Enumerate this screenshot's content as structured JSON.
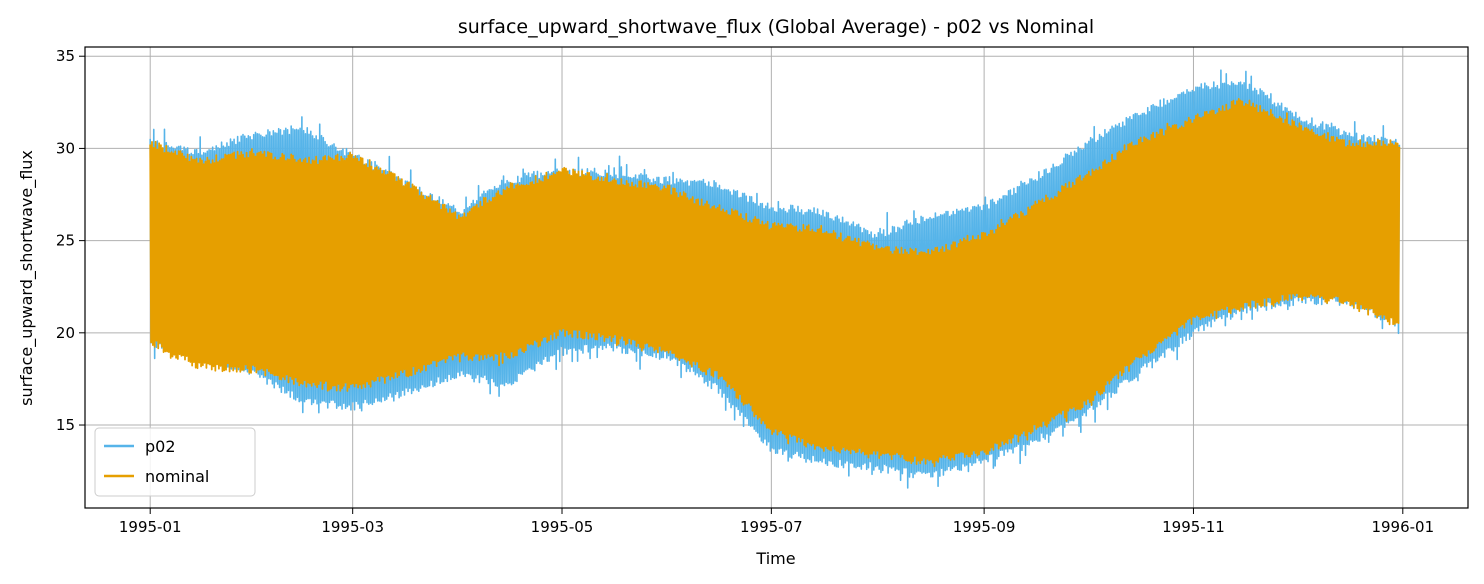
{
  "chart_data": {
    "type": "line",
    "title": "surface_upward_shortwave_flux (Global Average) - p02 vs Nominal",
    "xlabel": "Time",
    "ylabel": "surface_upward_shortwave_flux",
    "xlim": [
      "1994-12-13",
      "1996-01-20"
    ],
    "ylim": [
      10.5,
      35.5
    ],
    "x_ticks": [
      "1995-01",
      "1995-03",
      "1995-05",
      "1995-07",
      "1995-09",
      "1995-11",
      "1996-01"
    ],
    "x_tick_dates": [
      "1995-01-01",
      "1995-03-01",
      "1995-05-01",
      "1995-07-01",
      "1995-09-01",
      "1995-11-01",
      "1996-01-01"
    ],
    "y_ticks": [
      15,
      20,
      25,
      30,
      35
    ],
    "grid": true,
    "legend_position": "lower-left",
    "series": [
      {
        "name": "p02",
        "color": "#56B4E9",
        "points": [
          {
            "x": "1995-01-01",
            "upper": 30.5,
            "lower": 19.3
          },
          {
            "x": "1995-01-15",
            "upper": 30.0,
            "lower": 18.5
          },
          {
            "x": "1995-02-01",
            "upper": 31.0,
            "lower": 17.5
          },
          {
            "x": "1995-02-15",
            "upper": 31.3,
            "lower": 16.0
          },
          {
            "x": "1995-03-01",
            "upper": 29.8,
            "lower": 15.8
          },
          {
            "x": "1995-03-15",
            "upper": 28.5,
            "lower": 16.5
          },
          {
            "x": "1995-04-01",
            "upper": 26.8,
            "lower": 17.5
          },
          {
            "x": "1995-04-15",
            "upper": 28.5,
            "lower": 17.0
          },
          {
            "x": "1995-05-01",
            "upper": 29.0,
            "lower": 18.8
          },
          {
            "x": "1995-05-15",
            "upper": 28.8,
            "lower": 19.0
          },
          {
            "x": "1995-06-01",
            "upper": 28.5,
            "lower": 18.5
          },
          {
            "x": "1995-06-15",
            "upper": 28.3,
            "lower": 16.8
          },
          {
            "x": "1995-07-01",
            "upper": 27.0,
            "lower": 13.5
          },
          {
            "x": "1995-07-15",
            "upper": 26.8,
            "lower": 12.8
          },
          {
            "x": "1995-08-01",
            "upper": 25.5,
            "lower": 12.5
          },
          {
            "x": "1995-08-15",
            "upper": 26.5,
            "lower": 12.0
          },
          {
            "x": "1995-09-01",
            "upper": 27.0,
            "lower": 12.9
          },
          {
            "x": "1995-09-15",
            "upper": 28.5,
            "lower": 13.8
          },
          {
            "x": "1995-10-01",
            "upper": 30.5,
            "lower": 15.5
          },
          {
            "x": "1995-10-15",
            "upper": 32.0,
            "lower": 17.5
          },
          {
            "x": "1995-11-01",
            "upper": 33.5,
            "lower": 19.8
          },
          {
            "x": "1995-11-15",
            "upper": 33.8,
            "lower": 21.0
          },
          {
            "x": "1995-12-01",
            "upper": 32.0,
            "lower": 21.5
          },
          {
            "x": "1995-12-15",
            "upper": 31.0,
            "lower": 21.5
          },
          {
            "x": "1995-12-31",
            "upper": 30.5,
            "lower": 20.2
          }
        ]
      },
      {
        "name": "nominal",
        "color": "#E69F00",
        "points": [
          {
            "x": "1995-01-01",
            "upper": 30.5,
            "lower": 19.3
          },
          {
            "x": "1995-01-15",
            "upper": 29.5,
            "lower": 18.0
          },
          {
            "x": "1995-02-01",
            "upper": 30.0,
            "lower": 17.8
          },
          {
            "x": "1995-02-15",
            "upper": 29.5,
            "lower": 17.0
          },
          {
            "x": "1995-03-01",
            "upper": 29.8,
            "lower": 16.8
          },
          {
            "x": "1995-03-15",
            "upper": 28.5,
            "lower": 17.5
          },
          {
            "x": "1995-04-01",
            "upper": 26.5,
            "lower": 18.5
          },
          {
            "x": "1995-04-15",
            "upper": 28.0,
            "lower": 18.5
          },
          {
            "x": "1995-05-01",
            "upper": 29.0,
            "lower": 19.8
          },
          {
            "x": "1995-05-15",
            "upper": 28.5,
            "lower": 19.5
          },
          {
            "x": "1995-06-01",
            "upper": 28.0,
            "lower": 18.8
          },
          {
            "x": "1995-06-15",
            "upper": 27.0,
            "lower": 17.5
          },
          {
            "x": "1995-07-01",
            "upper": 26.0,
            "lower": 14.5
          },
          {
            "x": "1995-07-15",
            "upper": 25.8,
            "lower": 13.5
          },
          {
            "x": "1995-08-01",
            "upper": 24.8,
            "lower": 13.2
          },
          {
            "x": "1995-08-15",
            "upper": 24.5,
            "lower": 12.8
          },
          {
            "x": "1995-09-01",
            "upper": 25.5,
            "lower": 13.3
          },
          {
            "x": "1995-09-15",
            "upper": 27.0,
            "lower": 14.5
          },
          {
            "x": "1995-10-01",
            "upper": 28.8,
            "lower": 16.0
          },
          {
            "x": "1995-10-15",
            "upper": 30.5,
            "lower": 18.2
          },
          {
            "x": "1995-11-01",
            "upper": 31.8,
            "lower": 20.5
          },
          {
            "x": "1995-11-15",
            "upper": 32.8,
            "lower": 21.2
          },
          {
            "x": "1995-12-01",
            "upper": 31.5,
            "lower": 21.8
          },
          {
            "x": "1995-12-15",
            "upper": 30.5,
            "lower": 21.5
          },
          {
            "x": "1995-12-31",
            "upper": 30.5,
            "lower": 20.2
          }
        ]
      }
    ]
  }
}
